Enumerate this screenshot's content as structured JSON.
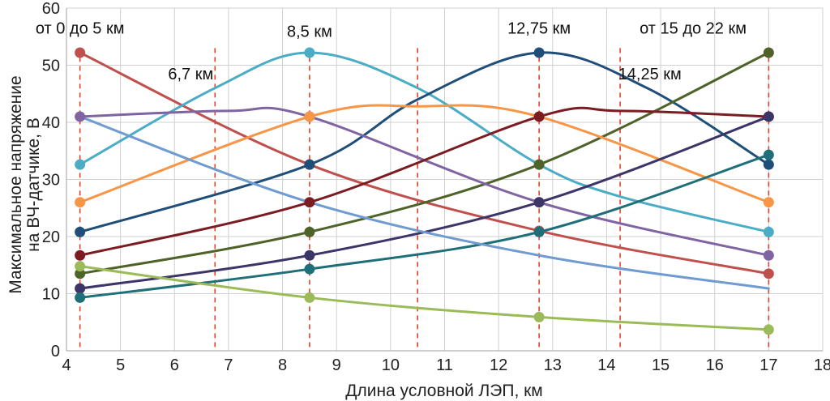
{
  "chart_data": {
    "type": "line",
    "title": "",
    "xlabel": "Длина условной ЛЭП, км",
    "ylabel_lines": [
      "Максимальное напряжение",
      "на ВЧ-датчике, В"
    ],
    "xlim": [
      4,
      18
    ],
    "ylim": [
      0,
      60
    ],
    "xticks": [
      "4",
      "5",
      "6",
      "7",
      "8",
      "9",
      "10",
      "11",
      "12",
      "13",
      "14",
      "15",
      "16",
      "17",
      "18"
    ],
    "yticks": [
      "0",
      "10",
      "20",
      "30",
      "40",
      "50",
      "60"
    ],
    "grid": true,
    "marker_x": [
      4.25,
      8.5,
      12.75,
      17
    ],
    "dashed_lines_x": [
      4.25,
      6.75,
      8.5,
      10.5,
      12.75,
      14.25,
      17
    ],
    "annotations": [
      {
        "text": "от 0 до 5 км",
        "x": 4.25,
        "y": 55.5
      },
      {
        "text": "6,7 км",
        "x": 6.3,
        "y": 47.5
      },
      {
        "text": "8,5 км",
        "x": 8.5,
        "y": 55
      },
      {
        "text": "12,75 км",
        "x": 12.75,
        "y": 55.5
      },
      {
        "text": "14,25 км",
        "x": 14.8,
        "y": 47.5
      },
      {
        "text": "от 15 до 22 км",
        "x": 15.6,
        "y": 55.5
      }
    ],
    "series": [
      {
        "name": "s1",
        "color": "#c0504d",
        "points": [
          [
            4.25,
            52.2
          ],
          [
            8.5,
            32.6
          ],
          [
            12.75,
            21
          ],
          [
            17,
            13.5
          ]
        ],
        "markers": true
      },
      {
        "name": "s2",
        "color": "#4bacc6",
        "points": [
          [
            4.25,
            32.6
          ],
          [
            6.75,
            46
          ],
          [
            8.5,
            52.2
          ],
          [
            10.5,
            46
          ],
          [
            12.75,
            32.6
          ],
          [
            14.25,
            27
          ],
          [
            17,
            20.8
          ]
        ],
        "markers": true
      },
      {
        "name": "s3",
        "color": "#1f4e79",
        "points": [
          [
            4.25,
            20.8
          ],
          [
            8.5,
            32.6
          ],
          [
            10.5,
            44
          ],
          [
            12.75,
            52.2
          ],
          [
            14.75,
            46
          ],
          [
            17,
            32.6
          ]
        ],
        "markers": true
      },
      {
        "name": "s4",
        "color": "#4f6228",
        "points": [
          [
            4.25,
            13.5
          ],
          [
            8.5,
            20.8
          ],
          [
            12.75,
            32.6
          ],
          [
            17,
            52.2
          ]
        ],
        "markers": true
      },
      {
        "name": "s5",
        "color": "#8064a2",
        "points": [
          [
            4.25,
            41
          ],
          [
            7,
            42
          ],
          [
            8.5,
            41
          ],
          [
            12.75,
            26
          ],
          [
            17,
            16.7
          ]
        ],
        "markers": true
      },
      {
        "name": "s6",
        "color": "#f79646",
        "points": [
          [
            4.25,
            26
          ],
          [
            8.5,
            41
          ],
          [
            10.5,
            42.8
          ],
          [
            12.75,
            41
          ],
          [
            17,
            26
          ]
        ],
        "markers": true
      },
      {
        "name": "s7",
        "color": "#7b1c22",
        "points": [
          [
            4.25,
            16.7
          ],
          [
            8.5,
            26
          ],
          [
            12.75,
            41
          ],
          [
            14.25,
            42
          ],
          [
            17,
            41
          ]
        ],
        "markers": true
      },
      {
        "name": "s8",
        "color": "#3c3568",
        "points": [
          [
            4.25,
            10.9
          ],
          [
            8.5,
            16.7
          ],
          [
            12.75,
            26
          ],
          [
            17,
            41
          ]
        ],
        "markers": true
      },
      {
        "name": "s9",
        "color": "#1e6f78",
        "points": [
          [
            4.25,
            9.3
          ],
          [
            8.5,
            14.3
          ],
          [
            12.75,
            20.8
          ],
          [
            17,
            34.3
          ]
        ],
        "markers": true
      },
      {
        "name": "s10",
        "color": "#9bbb59",
        "points": [
          [
            4.25,
            14.8
          ],
          [
            8.5,
            9.3
          ],
          [
            12.75,
            5.9
          ],
          [
            17,
            3.7
          ]
        ],
        "markers": true
      },
      {
        "name": "s11",
        "color": "#6f9bd1",
        "points": [
          [
            4.25,
            41
          ],
          [
            8.5,
            26
          ],
          [
            12.75,
            16.7
          ],
          [
            17,
            10.9
          ]
        ],
        "markers": false
      }
    ]
  }
}
